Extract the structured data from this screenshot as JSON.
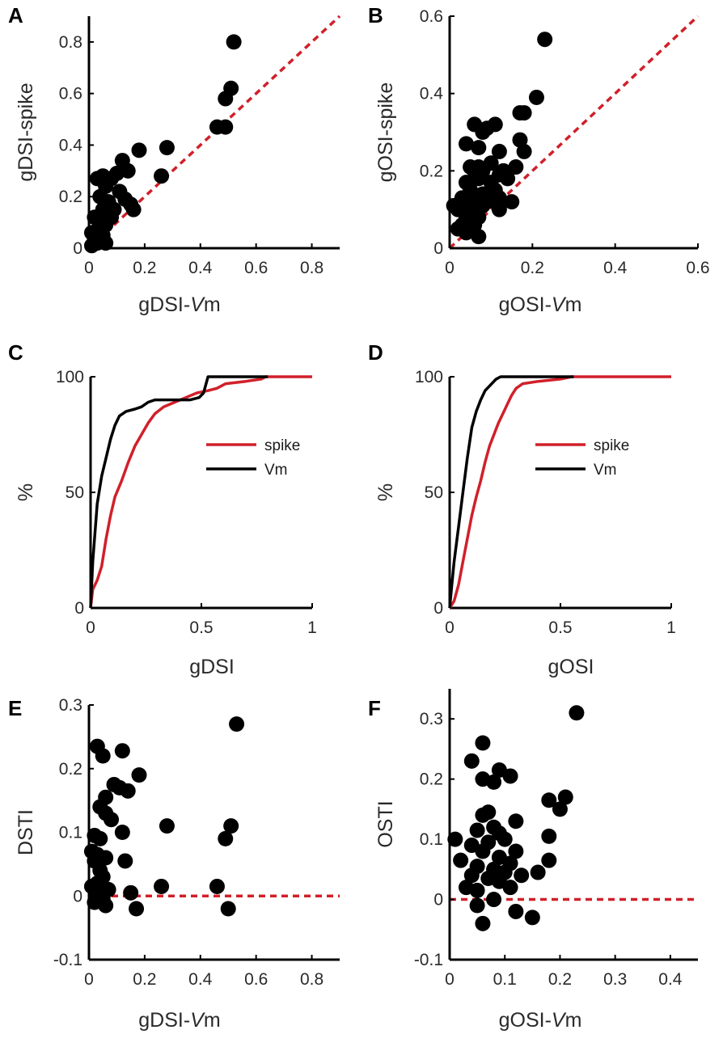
{
  "chart_data": [
    {
      "id": "A",
      "type": "scatter",
      "panel_label": "A",
      "xlabel_main": "gDSI-",
      "xlabel_italic": "V",
      "xlabel_tail": "m",
      "ylabel": "gDSI-spike",
      "xlim": [
        0,
        0.9
      ],
      "ylim": [
        0,
        0.9
      ],
      "xticks": [
        0,
        0.2,
        0.4,
        0.6,
        0.8
      ],
      "xtick_labels": [
        "0",
        "0.2",
        "0.4",
        "0.6",
        "0.8"
      ],
      "yticks": [
        0,
        0.2,
        0.4,
        0.6,
        0.8
      ],
      "ytick_labels": [
        "0",
        "0.2",
        "0.4",
        "0.6",
        "0.8"
      ],
      "reference_line": {
        "style": "dashed",
        "color": "#d0202a",
        "points": [
          [
            0,
            0
          ],
          [
            0.9,
            0.9
          ]
        ]
      },
      "points": [
        [
          0.52,
          0.8
        ],
        [
          0.51,
          0.62
        ],
        [
          0.49,
          0.58
        ],
        [
          0.46,
          0.47
        ],
        [
          0.49,
          0.47
        ],
        [
          0.28,
          0.39
        ],
        [
          0.18,
          0.38
        ],
        [
          0.26,
          0.28
        ],
        [
          0.12,
          0.34
        ],
        [
          0.14,
          0.3
        ],
        [
          0.1,
          0.29
        ],
        [
          0.08,
          0.27
        ],
        [
          0.05,
          0.28
        ],
        [
          0.03,
          0.27
        ],
        [
          0.06,
          0.24
        ],
        [
          0.11,
          0.22
        ],
        [
          0.13,
          0.19
        ],
        [
          0.04,
          0.2
        ],
        [
          0.07,
          0.18
        ],
        [
          0.05,
          0.15
        ],
        [
          0.09,
          0.15
        ],
        [
          0.16,
          0.15
        ],
        [
          0.02,
          0.12
        ],
        [
          0.04,
          0.1
        ],
        [
          0.06,
          0.09
        ],
        [
          0.03,
          0.07
        ],
        [
          0.01,
          0.06
        ],
        [
          0.05,
          0.05
        ],
        [
          0.02,
          0.04
        ],
        [
          0.04,
          0.03
        ],
        [
          0.06,
          0.02
        ],
        [
          0.01,
          0.01
        ],
        [
          0.03,
          0.02
        ],
        [
          0.15,
          0.17
        ],
        [
          0.08,
          0.12
        ]
      ]
    },
    {
      "id": "B",
      "type": "scatter",
      "panel_label": "B",
      "xlabel_main": "gOSI-",
      "xlabel_italic": "V",
      "xlabel_tail": "m",
      "ylabel": "gOSI-spike",
      "xlim": [
        0,
        0.6
      ],
      "ylim": [
        0,
        0.6
      ],
      "xticks": [
        0,
        0.2,
        0.4,
        0.6
      ],
      "xtick_labels": [
        "0",
        "0.2",
        "0.4",
        "0.6"
      ],
      "yticks": [
        0,
        0.2,
        0.4,
        0.6
      ],
      "ytick_labels": [
        "0",
        "0.2",
        "0.4",
        "0.6"
      ],
      "reference_line": {
        "style": "dashed",
        "color": "#d0202a",
        "points": [
          [
            0,
            0
          ],
          [
            0.6,
            0.6
          ]
        ]
      },
      "points": [
        [
          0.23,
          0.54
        ],
        [
          0.21,
          0.39
        ],
        [
          0.18,
          0.35
        ],
        [
          0.17,
          0.35
        ],
        [
          0.17,
          0.28
        ],
        [
          0.18,
          0.25
        ],
        [
          0.06,
          0.32
        ],
        [
          0.08,
          0.3
        ],
        [
          0.11,
          0.32
        ],
        [
          0.09,
          0.31
        ],
        [
          0.04,
          0.27
        ],
        [
          0.07,
          0.26
        ],
        [
          0.12,
          0.25
        ],
        [
          0.05,
          0.21
        ],
        [
          0.07,
          0.21
        ],
        [
          0.06,
          0.2
        ],
        [
          0.08,
          0.2
        ],
        [
          0.1,
          0.22
        ],
        [
          0.13,
          0.2
        ],
        [
          0.12,
          0.19
        ],
        [
          0.14,
          0.18
        ],
        [
          0.16,
          0.21
        ],
        [
          0.04,
          0.17
        ],
        [
          0.07,
          0.18
        ],
        [
          0.1,
          0.17
        ],
        [
          0.05,
          0.15
        ],
        [
          0.08,
          0.14
        ],
        [
          0.11,
          0.15
        ],
        [
          0.03,
          0.13
        ],
        [
          0.06,
          0.12
        ],
        [
          0.09,
          0.12
        ],
        [
          0.12,
          0.13
        ],
        [
          0.15,
          0.12
        ],
        [
          0.01,
          0.11
        ],
        [
          0.02,
          0.1
        ],
        [
          0.05,
          0.1
        ],
        [
          0.08,
          0.11
        ],
        [
          0.12,
          0.1
        ],
        [
          0.04,
          0.08
        ],
        [
          0.07,
          0.08
        ],
        [
          0.03,
          0.06
        ],
        [
          0.06,
          0.06
        ],
        [
          0.02,
          0.05
        ],
        [
          0.04,
          0.04
        ],
        [
          0.07,
          0.03
        ]
      ]
    },
    {
      "id": "C",
      "type": "line",
      "panel_label": "C",
      "xlabel_main": "gDSI",
      "ylabel": "%",
      "xlim": [
        0,
        1
      ],
      "ylim": [
        0,
        100
      ],
      "xticks": [
        0,
        0.5,
        1
      ],
      "xtick_labels": [
        "0",
        "0.5",
        "1"
      ],
      "yticks": [
        0,
        50,
        100
      ],
      "ytick_labels": [
        "0",
        "50",
        "100"
      ],
      "legend_position": "center-right",
      "series": [
        {
          "name": "spike",
          "color": "#d0202a",
          "points": [
            [
              0,
              0
            ],
            [
              0.01,
              8
            ],
            [
              0.03,
              12
            ],
            [
              0.05,
              18
            ],
            [
              0.07,
              30
            ],
            [
              0.09,
              40
            ],
            [
              0.11,
              48
            ],
            [
              0.14,
              55
            ],
            [
              0.17,
              63
            ],
            [
              0.2,
              70
            ],
            [
              0.23,
              75
            ],
            [
              0.26,
              80
            ],
            [
              0.29,
              84
            ],
            [
              0.33,
              87
            ],
            [
              0.38,
              89
            ],
            [
              0.43,
              91
            ],
            [
              0.48,
              93
            ],
            [
              0.53,
              94
            ],
            [
              0.57,
              95
            ],
            [
              0.61,
              97
            ],
            [
              0.7,
              98
            ],
            [
              0.77,
              99
            ],
            [
              0.79,
              100
            ],
            [
              1,
              100
            ]
          ]
        },
        {
          "name": "Vm",
          "color": "#000000",
          "points": [
            [
              0,
              0
            ],
            [
              0.01,
              20
            ],
            [
              0.03,
              45
            ],
            [
              0.05,
              57
            ],
            [
              0.07,
              65
            ],
            [
              0.09,
              73
            ],
            [
              0.11,
              79
            ],
            [
              0.13,
              83
            ],
            [
              0.16,
              85
            ],
            [
              0.2,
              86
            ],
            [
              0.23,
              87
            ],
            [
              0.26,
              89
            ],
            [
              0.29,
              90
            ],
            [
              0.35,
              90
            ],
            [
              0.45,
              90
            ],
            [
              0.49,
              91
            ],
            [
              0.51,
              93
            ],
            [
              0.53,
              100
            ],
            [
              0.8,
              100
            ]
          ]
        }
      ]
    },
    {
      "id": "D",
      "type": "line",
      "panel_label": "D",
      "xlabel_main": "gOSI",
      "ylabel": "%",
      "xlim": [
        0,
        1
      ],
      "ylim": [
        0,
        100
      ],
      "xticks": [
        0,
        0.5,
        1
      ],
      "xtick_labels": [
        "0",
        "0.5",
        "1"
      ],
      "yticks": [
        0,
        50,
        100
      ],
      "ytick_labels": [
        "0",
        "50",
        "100"
      ],
      "legend_position": "center-right",
      "series": [
        {
          "name": "spike",
          "color": "#d0202a",
          "points": [
            [
              0,
              0
            ],
            [
              0.02,
              3
            ],
            [
              0.04,
              10
            ],
            [
              0.06,
              20
            ],
            [
              0.08,
              30
            ],
            [
              0.1,
              40
            ],
            [
              0.12,
              48
            ],
            [
              0.14,
              55
            ],
            [
              0.16,
              63
            ],
            [
              0.18,
              70
            ],
            [
              0.2,
              75
            ],
            [
              0.22,
              80
            ],
            [
              0.24,
              84
            ],
            [
              0.26,
              88
            ],
            [
              0.28,
              92
            ],
            [
              0.3,
              95
            ],
            [
              0.33,
              97
            ],
            [
              0.4,
              98
            ],
            [
              0.5,
              99
            ],
            [
              0.55,
              100
            ],
            [
              1,
              100
            ]
          ]
        },
        {
          "name": "Vm",
          "color": "#000000",
          "points": [
            [
              0,
              0
            ],
            [
              0.01,
              10
            ],
            [
              0.02,
              20
            ],
            [
              0.04,
              35
            ],
            [
              0.06,
              50
            ],
            [
              0.08,
              65
            ],
            [
              0.1,
              78
            ],
            [
              0.12,
              85
            ],
            [
              0.14,
              90
            ],
            [
              0.16,
              94
            ],
            [
              0.18,
              96
            ],
            [
              0.21,
              99
            ],
            [
              0.23,
              100
            ],
            [
              0.56,
              100
            ]
          ]
        }
      ]
    },
    {
      "id": "E",
      "type": "scatter",
      "panel_label": "E",
      "xlabel_main": "gDSI-",
      "xlabel_italic": "V",
      "xlabel_tail": "m",
      "ylabel": "DSTI",
      "xlim": [
        0,
        0.9
      ],
      "ylim": [
        -0.1,
        0.3
      ],
      "xticks": [
        0,
        0.2,
        0.4,
        0.6,
        0.8
      ],
      "xtick_labels": [
        "0",
        "0.2",
        "0.4",
        "0.6",
        "0.8"
      ],
      "yticks": [
        -0.1,
        0,
        0.1,
        0.2,
        0.3
      ],
      "ytick_labels": [
        "-0.1",
        "0",
        "0.1",
        "0.2",
        "0.3"
      ],
      "reference_line": {
        "style": "dashed",
        "color": "#d0202a",
        "points": [
          [
            0,
            0
          ],
          [
            0.9,
            0
          ]
        ]
      },
      "points": [
        [
          0.53,
          0.27
        ],
        [
          0.03,
          0.235
        ],
        [
          0.12,
          0.228
        ],
        [
          0.05,
          0.22
        ],
        [
          0.18,
          0.19
        ],
        [
          0.09,
          0.175
        ],
        [
          0.11,
          0.17
        ],
        [
          0.14,
          0.165
        ],
        [
          0.06,
          0.155
        ],
        [
          0.04,
          0.14
        ],
        [
          0.06,
          0.13
        ],
        [
          0.08,
          0.12
        ],
        [
          0.28,
          0.11
        ],
        [
          0.51,
          0.11
        ],
        [
          0.12,
          0.1
        ],
        [
          0.02,
          0.095
        ],
        [
          0.04,
          0.09
        ],
        [
          0.49,
          0.09
        ],
        [
          0.01,
          0.07
        ],
        [
          0.03,
          0.065
        ],
        [
          0.06,
          0.06
        ],
        [
          0.02,
          0.055
        ],
        [
          0.13,
          0.055
        ],
        [
          0.04,
          0.04
        ],
        [
          0.05,
          0.03
        ],
        [
          0.03,
          0.02
        ],
        [
          0.01,
          0.015
        ],
        [
          0.26,
          0.015
        ],
        [
          0.46,
          0.015
        ],
        [
          0.07,
          0.01
        ],
        [
          0.15,
          0.005
        ],
        [
          0.03,
          0.0
        ],
        [
          0.05,
          -0.005
        ],
        [
          0.02,
          -0.01
        ],
        [
          0.06,
          -0.015
        ],
        [
          0.17,
          -0.02
        ],
        [
          0.5,
          -0.02
        ]
      ]
    },
    {
      "id": "F",
      "type": "scatter",
      "panel_label": "F",
      "xlabel_main": "gOSI-",
      "xlabel_italic": "V",
      "xlabel_tail": "m",
      "ylabel": "OSTI",
      "xlim": [
        0,
        0.45
      ],
      "ylim": [
        -0.1,
        0.35
      ],
      "xticks": [
        0,
        0.1,
        0.2,
        0.3,
        0.4
      ],
      "xtick_labels": [
        "0",
        "0.1",
        "0.2",
        "0.3",
        "0.4"
      ],
      "yticks": [
        -0.1,
        0,
        0.1,
        0.2,
        0.3
      ],
      "ytick_labels": [
        "-0.1",
        "0",
        "0.1",
        "0.2",
        "0.3"
      ],
      "reference_line": {
        "style": "dashed",
        "color": "#d0202a",
        "points": [
          [
            0,
            0
          ],
          [
            0.45,
            0
          ]
        ]
      },
      "points": [
        [
          0.23,
          0.31
        ],
        [
          0.06,
          0.26
        ],
        [
          0.04,
          0.23
        ],
        [
          0.09,
          0.215
        ],
        [
          0.11,
          0.205
        ],
        [
          0.06,
          0.2
        ],
        [
          0.08,
          0.195
        ],
        [
          0.18,
          0.165
        ],
        [
          0.21,
          0.17
        ],
        [
          0.2,
          0.15
        ],
        [
          0.07,
          0.145
        ],
        [
          0.06,
          0.14
        ],
        [
          0.08,
          0.12
        ],
        [
          0.12,
          0.13
        ],
        [
          0.05,
          0.115
        ],
        [
          0.09,
          0.11
        ],
        [
          0.01,
          0.1
        ],
        [
          0.04,
          0.09
        ],
        [
          0.1,
          0.1
        ],
        [
          0.07,
          0.095
        ],
        [
          0.18,
          0.105
        ],
        [
          0.06,
          0.08
        ],
        [
          0.09,
          0.07
        ],
        [
          0.12,
          0.08
        ],
        [
          0.18,
          0.065
        ],
        [
          0.02,
          0.065
        ],
        [
          0.05,
          0.055
        ],
        [
          0.08,
          0.05
        ],
        [
          0.11,
          0.06
        ],
        [
          0.04,
          0.04
        ],
        [
          0.07,
          0.035
        ],
        [
          0.1,
          0.045
        ],
        [
          0.13,
          0.04
        ],
        [
          0.16,
          0.045
        ],
        [
          0.03,
          0.02
        ],
        [
          0.05,
          0.015
        ],
        [
          0.09,
          0.03
        ],
        [
          0.11,
          0.02
        ],
        [
          0.08,
          0.0
        ],
        [
          0.05,
          -0.01
        ],
        [
          0.12,
          -0.02
        ],
        [
          0.15,
          -0.03
        ],
        [
          0.06,
          -0.04
        ]
      ]
    }
  ]
}
